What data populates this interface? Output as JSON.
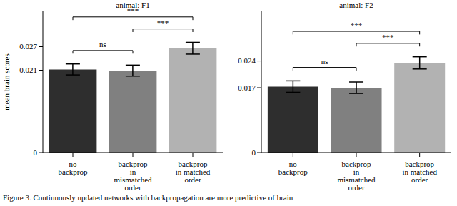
{
  "caption": "Figure 3. Continuously updated networks with backpropagation are more predictive of brain",
  "chart_data": [
    {
      "type": "bar",
      "title": "animal: F1",
      "y_label": "mean brain scores",
      "categories": [
        "no backprop",
        "backprop in mismatched order",
        "backprop in matched order"
      ],
      "values": [
        0.0212,
        0.0209,
        0.0266
      ],
      "errors": [
        0.0014,
        0.0014,
        0.0015
      ],
      "colors": [
        "#2e2e2e",
        "#808080",
        "#b2b2b2"
      ],
      "ylim": [
        0,
        0.036
      ],
      "yticks": [
        0,
        0.021,
        0.027
      ],
      "annotations": [
        {
          "from": 0,
          "to": 1,
          "label": "ns"
        },
        {
          "from": 1,
          "to": 2,
          "label": "***"
        },
        {
          "from": 0,
          "to": 2,
          "label": "***"
        }
      ]
    },
    {
      "type": "bar",
      "title": "animal: F2",
      "categories": [
        "no backprop",
        "backprop in mismatched order",
        "backprop in matched order"
      ],
      "values": [
        0.0173,
        0.017,
        0.0235
      ],
      "errors": [
        0.0015,
        0.0015,
        0.0016
      ],
      "colors": [
        "#2e2e2e",
        "#808080",
        "#b2b2b2"
      ],
      "ylim": [
        0,
        0.037
      ],
      "yticks": [
        0,
        0.017,
        0.024
      ],
      "annotations": [
        {
          "from": 0,
          "to": 1,
          "label": "ns"
        },
        {
          "from": 1,
          "to": 2,
          "label": "***"
        },
        {
          "from": 0,
          "to": 2,
          "label": "***"
        }
      ]
    }
  ]
}
